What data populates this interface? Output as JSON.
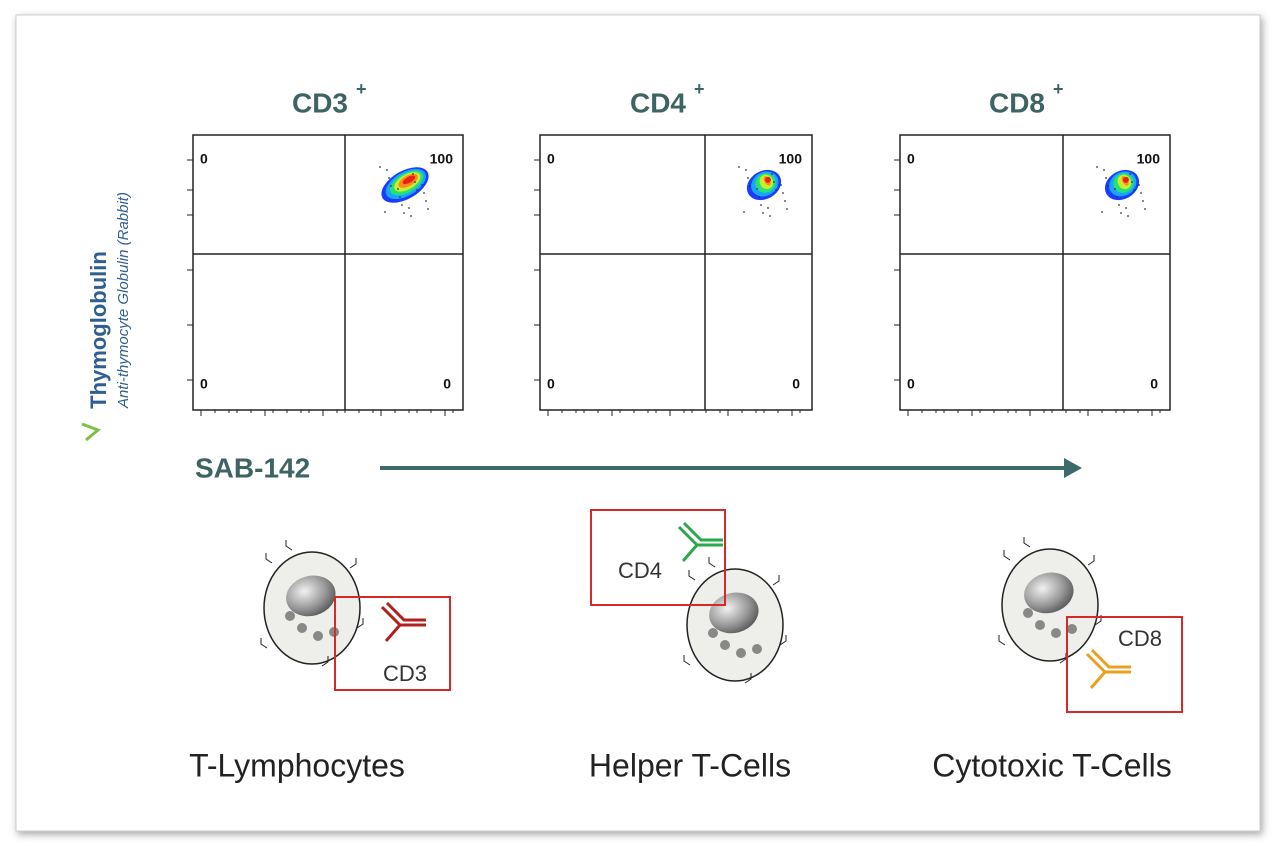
{
  "y_axis_label": {
    "brand": "Thymoglobulin",
    "subtitle": "Anti-thymocyte Globulin (Rabbit)"
  },
  "x_axis_label": "SAB-142",
  "panels": [
    {
      "title": "CD3",
      "superscript": "+",
      "quadrants": {
        "upper_left": 0,
        "upper_right": 100,
        "lower_left": 0,
        "lower_right": 0
      }
    },
    {
      "title": "CD4",
      "superscript": "+",
      "quadrants": {
        "upper_left": 0,
        "upper_right": 100,
        "lower_left": 0,
        "lower_right": 0
      }
    },
    {
      "title": "CD8",
      "superscript": "+",
      "quadrants": {
        "upper_left": 0,
        "upper_right": 100,
        "lower_left": 0,
        "lower_right": 0
      }
    }
  ],
  "cells": [
    {
      "marker": "CD3",
      "label": "T-Lymphocytes"
    },
    {
      "marker": "CD4",
      "label": "Helper T-Cells"
    },
    {
      "marker": "CD8",
      "label": "Cytotoxic T-Cells"
    }
  ]
}
